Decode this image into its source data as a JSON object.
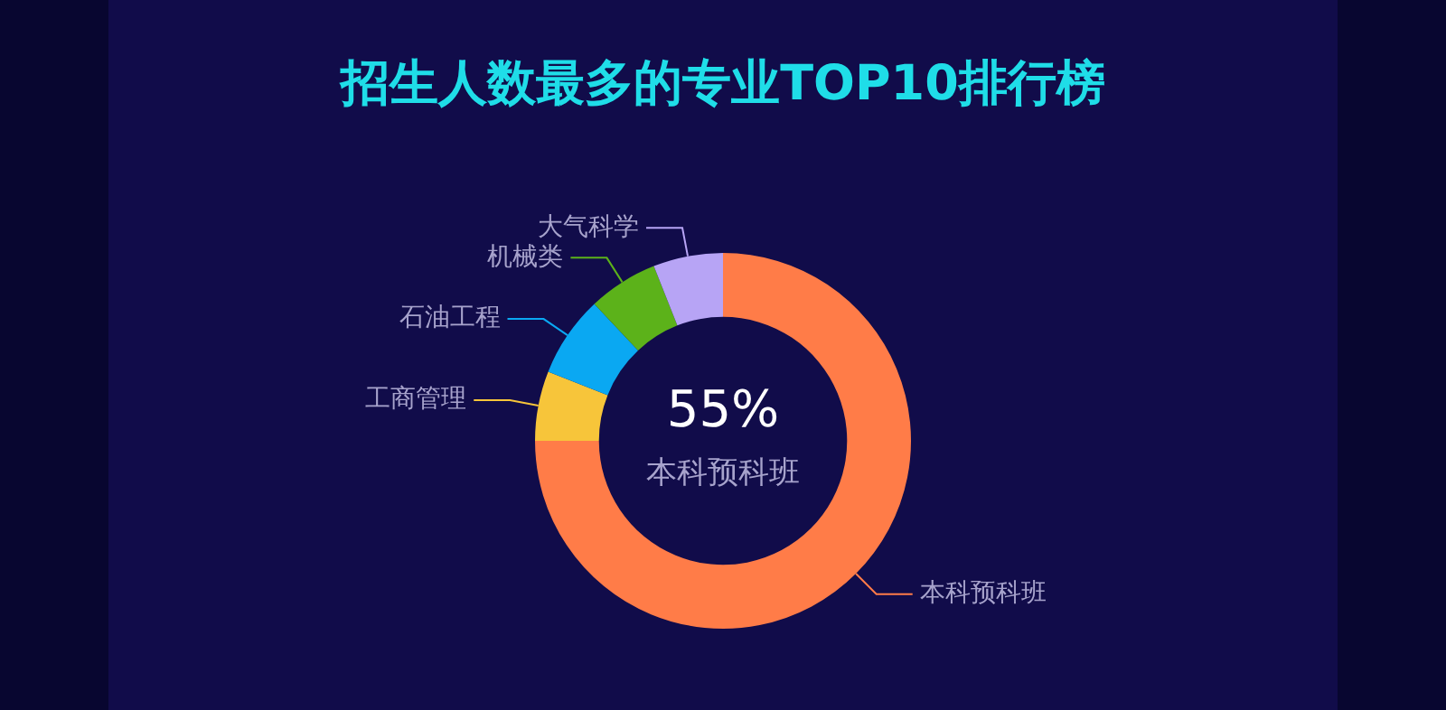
{
  "chart_data": {
    "type": "donut",
    "title": "招生人数最多的专业TOP10排行榜",
    "categories": [
      "本科预科班",
      "工商管理",
      "石油工程",
      "机械类",
      "大气科学"
    ],
    "values": [
      75,
      6,
      7,
      6,
      6
    ],
    "colors": [
      "#ff7c48",
      "#f7c53a",
      "#0aa8f2",
      "#5cb21a",
      "#b7a4f5"
    ],
    "annotations": [
      "55%",
      "本科预科班"
    ],
    "legend": false
  }
}
